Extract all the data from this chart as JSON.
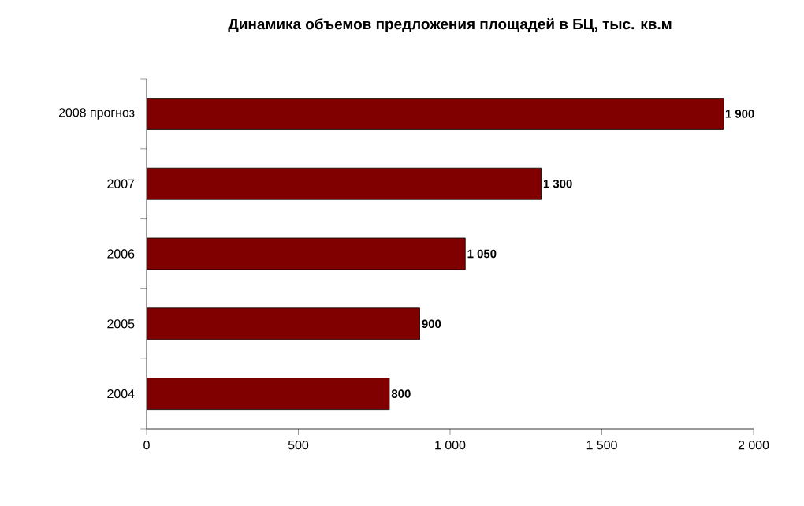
{
  "chart_data": {
    "type": "bar",
    "orientation": "horizontal",
    "title": "Динамика объемов предложения площадей в БЦ, тыс. кв.м",
    "categories": [
      "2008 прогноз",
      "2007",
      "2006",
      "2005",
      "2004"
    ],
    "values": [
      1900,
      1300,
      1050,
      900,
      800
    ],
    "value_labels": [
      "1 900",
      "1 300",
      "1 050",
      "900",
      "800"
    ],
    "color": "#800000",
    "xlim": [
      0,
      2000
    ],
    "xticks": [
      0,
      500,
      {
        "value": 1000,
        "label": "1 000"
      },
      {
        "value": 1500,
        "label": "1 500"
      },
      {
        "value": 2000,
        "label": "2 000"
      }
    ],
    "grid": false
  }
}
